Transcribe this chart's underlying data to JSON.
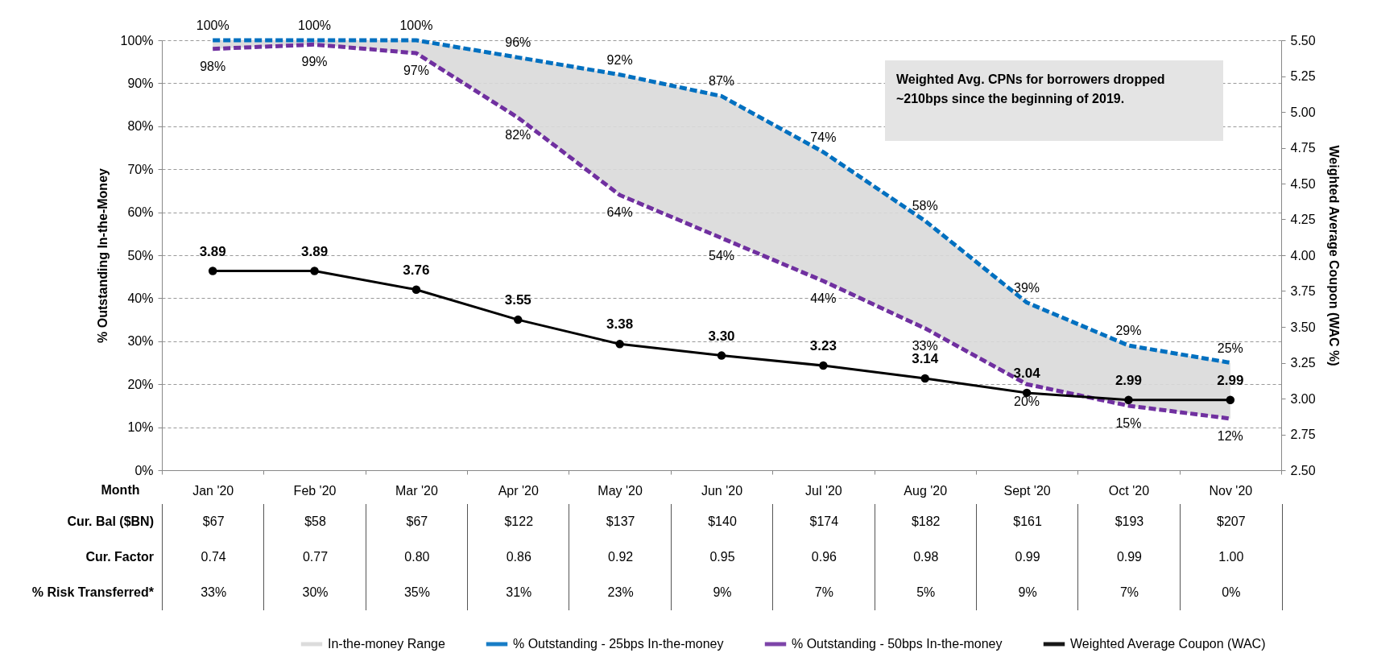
{
  "chart_data": {
    "type": "line",
    "xlabel": "Month",
    "ylabel": "% Outstanding In-the-Money",
    "y2label": "Weighted Average Coupon (WAC %)",
    "categories": [
      "Jan '20",
      "Feb '20",
      "Mar '20",
      "Apr '20",
      "May '20",
      "Jun '20",
      "Jul '20",
      "Aug '20",
      "Sept '20",
      "Oct '20",
      "Nov '20"
    ],
    "series": [
      {
        "name": "In-the-money Range",
        "type": "area",
        "color": "#d9d9d9",
        "values": [
          null,
          null,
          null,
          null,
          null,
          null,
          null,
          null,
          null,
          null,
          null
        ],
        "lower": [
          98,
          99,
          97,
          82,
          64,
          54,
          44,
          33,
          20,
          15,
          12
        ],
        "upper": [
          100,
          100,
          100,
          96,
          92,
          87,
          74,
          58,
          39,
          29,
          25
        ]
      },
      {
        "name": "% Outstanding - 25bps In-the-money",
        "type": "line",
        "line_style": "dashed",
        "marker": "none",
        "color": "#0070c0",
        "values": [
          100,
          100,
          100,
          96,
          92,
          87,
          74,
          58,
          39,
          29,
          25
        ],
        "value_labels": [
          "100%",
          "100%",
          "100%",
          "96%",
          "92%",
          "87%",
          "74%",
          "58%",
          "39%",
          "29%",
          "25%"
        ]
      },
      {
        "name": "% Outstanding - 50bps In-the-money",
        "type": "line",
        "line_style": "dashed",
        "marker": "none",
        "color": "#7030a0",
        "values": [
          98,
          99,
          97,
          82,
          64,
          54,
          44,
          33,
          20,
          15,
          12
        ],
        "value_labels": [
          "98%",
          "99%",
          "97%",
          "82%",
          "64%",
          "54%",
          "44%",
          "33%",
          "20%",
          "15%",
          "12%"
        ]
      },
      {
        "name": "Weighted Average Coupon (WAC)",
        "type": "line",
        "axis": "y2",
        "line_style": "solid",
        "marker": "circle",
        "color": "#000000",
        "values": [
          3.89,
          3.89,
          3.76,
          3.55,
          3.38,
          3.3,
          3.23,
          3.14,
          3.04,
          2.99,
          2.99
        ],
        "value_labels": [
          "3.89",
          "3.89",
          "3.76",
          "3.55",
          "3.38",
          "3.30",
          "3.23",
          "3.14",
          "3.04",
          "2.99",
          "2.99"
        ]
      }
    ],
    "ylim": [
      0,
      100
    ],
    "yticks": [
      {
        "value": 0,
        "label": "0%"
      },
      {
        "value": 10,
        "label": "10%"
      },
      {
        "value": 20,
        "label": "20%"
      },
      {
        "value": 30,
        "label": "30%"
      },
      {
        "value": 40,
        "label": "40%"
      },
      {
        "value": 50,
        "label": "50%"
      },
      {
        "value": 60,
        "label": "60%"
      },
      {
        "value": 70,
        "label": "70%"
      },
      {
        "value": 80,
        "label": "80%"
      },
      {
        "value": 90,
        "label": "90%"
      },
      {
        "value": 100,
        "label": "100%"
      }
    ],
    "y2lim": [
      2.5,
      5.5
    ],
    "y2ticks": [
      {
        "value": 2.5,
        "label": "2.50"
      },
      2.75,
      {
        "value": 3,
        "label": "3.00"
      },
      3.25,
      {
        "value": 3.5,
        "label": "3.50"
      },
      3.75,
      {
        "value": 4,
        "label": "4.00"
      },
      4.25,
      {
        "value": 4.5,
        "label": "4.50"
      },
      4.75,
      {
        "value": 5,
        "label": "5.00"
      },
      5.25,
      {
        "value": 5.5,
        "label": "5.50"
      }
    ],
    "grid": "y",
    "legend": "bottom",
    "annotations": [
      "Weighted Avg. CPNs  for borrowers dropped ~210bps since the beginning of 2019.",
      "Cur. Bal ($BN)",
      "$67",
      "$58",
      "$67",
      "$122",
      "$137",
      "$140",
      "$174",
      "$182",
      "$161",
      "$193",
      "$207",
      "Cur. Factor",
      "0.74",
      "0.77",
      "0.80",
      "0.86",
      "0.92",
      "0.95",
      "0.96",
      "0.98",
      "0.99",
      "0.99",
      "1.00",
      "% Risk Transferred*",
      "33%",
      "30%",
      "35%",
      "31%",
      "23%",
      "9%",
      "7%",
      "5%",
      "9%",
      "7%",
      "0%"
    ]
  }
}
